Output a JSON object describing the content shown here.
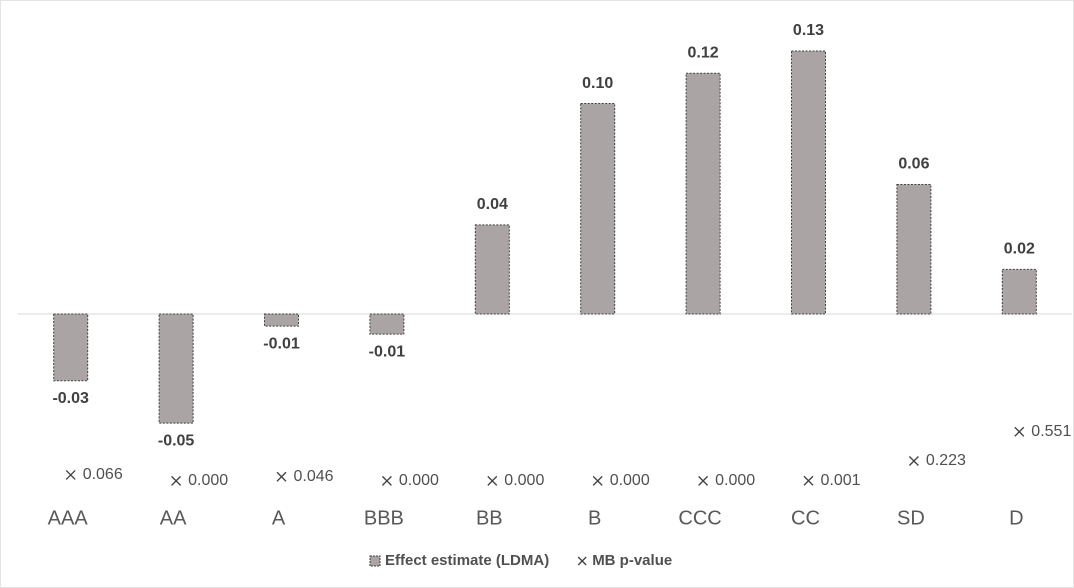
{
  "chart_data": {
    "type": "bar",
    "categories": [
      "AAA",
      "AA",
      "A",
      "BBB",
      "BB",
      "B",
      "CCC",
      "CC",
      "SD",
      "D"
    ],
    "series": [
      {
        "name": "Effect estimate (LDMA)",
        "color": "#aaa5a4",
        "values": [
          -0.033,
          -0.054,
          -0.006,
          -0.01,
          0.044,
          0.104,
          0.119,
          0.13,
          0.064,
          0.022
        ],
        "value_labels": [
          "-0.03",
          "-0.05",
          "-0.01",
          "-0.01",
          "0.04",
          "0.10",
          "0.12",
          "0.13",
          "0.06",
          "0.02"
        ]
      },
      {
        "name": "MB p-value",
        "type": "scatter",
        "axis": "y2",
        "color": "#404040",
        "values": [
          0.066,
          0.0,
          0.046,
          0.0,
          0.0,
          0.0,
          0.0,
          0.001,
          0.223,
          0.551
        ],
        "value_labels": [
          "0.066",
          "0.000",
          "0.046",
          "0.000",
          "0.000",
          "0.000",
          "0.000",
          "0.001",
          "0.223",
          "0.551"
        ]
      }
    ],
    "ylim": [
      -0.09,
      0.15
    ],
    "y2lim": [
      -0.17,
      5.28
    ],
    "legend": "bottom"
  }
}
